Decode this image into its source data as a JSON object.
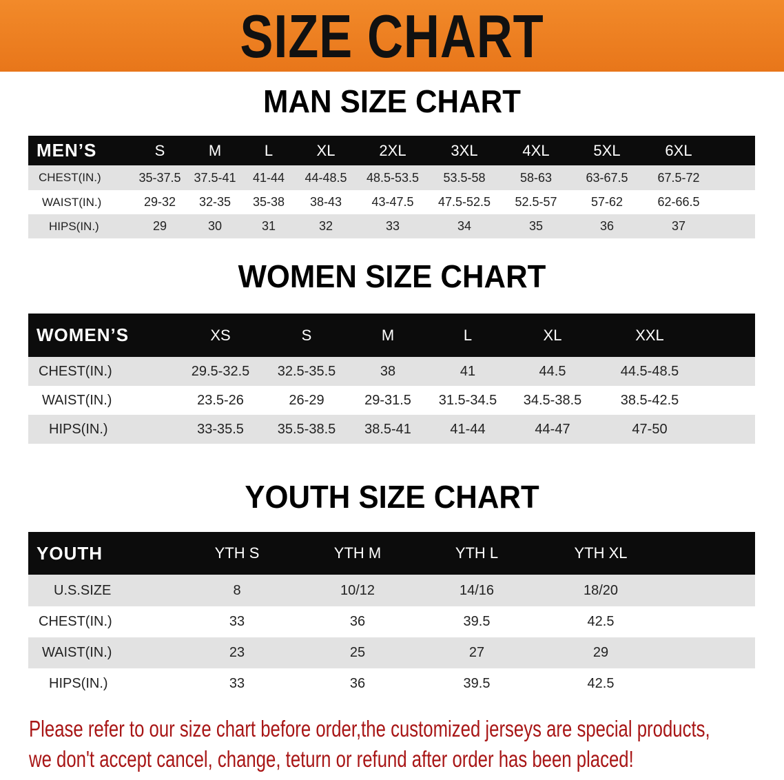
{
  "banner": {
    "title": "SIZE CHART",
    "color": "#ef8222"
  },
  "men": {
    "title": "MAN SIZE CHART",
    "header_label": "MEN’S",
    "sizes": [
      "S",
      "M",
      "L",
      "XL",
      "2XL",
      "3XL",
      "4XL",
      "5XL",
      "6XL"
    ],
    "rows": [
      {
        "label": "CHEST(IN.)",
        "values": [
          "35-37.5",
          "37.5-41",
          "41-44",
          "44-48.5",
          "48.5-53.5",
          "53.5-58",
          "58-63",
          "63-67.5",
          "67.5-72"
        ]
      },
      {
        "label": "WAIST(IN.)",
        "values": [
          "29-32",
          "32-35",
          "35-38",
          "38-43",
          "43-47.5",
          "47.5-52.5",
          "52.5-57",
          "57-62",
          "62-66.5"
        ]
      },
      {
        "label": "HIPS(IN.)",
        "values": [
          "29",
          "30",
          "31",
          "32",
          "33",
          "34",
          "35",
          "36",
          "37"
        ]
      }
    ]
  },
  "women": {
    "title": "WOMEN SIZE CHART",
    "header_label": "WOMEN’S",
    "sizes": [
      "XS",
      "S",
      "M",
      "L",
      "XL",
      "XXL"
    ],
    "rows": [
      {
        "label": "CHEST(IN.)",
        "values": [
          "29.5-32.5",
          "32.5-35.5",
          "38",
          "41",
          "44.5",
          "44.5-48.5"
        ]
      },
      {
        "label": "WAIST(IN.)",
        "values": [
          "23.5-26",
          "26-29",
          "29-31.5",
          "31.5-34.5",
          "34.5-38.5",
          "38.5-42.5"
        ]
      },
      {
        "label": "HIPS(IN.)",
        "values": [
          "33-35.5",
          "35.5-38.5",
          "38.5-41",
          "41-44",
          "44-47",
          "47-50"
        ]
      }
    ]
  },
  "youth": {
    "title": "YOUTH SIZE CHART",
    "header_label": "YOUTH",
    "sizes": [
      "YTH S",
      "YTH M",
      "YTH L",
      "YTH XL"
    ],
    "rows": [
      {
        "label": "U.S.SIZE",
        "values": [
          "8",
          "10/12",
          "14/16",
          "18/20"
        ]
      },
      {
        "label": "CHEST(IN.)",
        "values": [
          "33",
          "36",
          "39.5",
          "42.5"
        ]
      },
      {
        "label": "WAIST(IN.)",
        "values": [
          "23",
          "25",
          "27",
          "29"
        ]
      },
      {
        "label": "HIPS(IN.)",
        "values": [
          "33",
          "36",
          "39.5",
          "42.5"
        ]
      }
    ]
  },
  "notice": {
    "line1": "Please refer to our size chart before order,the customized jerseys are special products,",
    "line2": "we don't accept cancel, change, teturn or refund after order has been placed!",
    "color": "#a81616"
  }
}
